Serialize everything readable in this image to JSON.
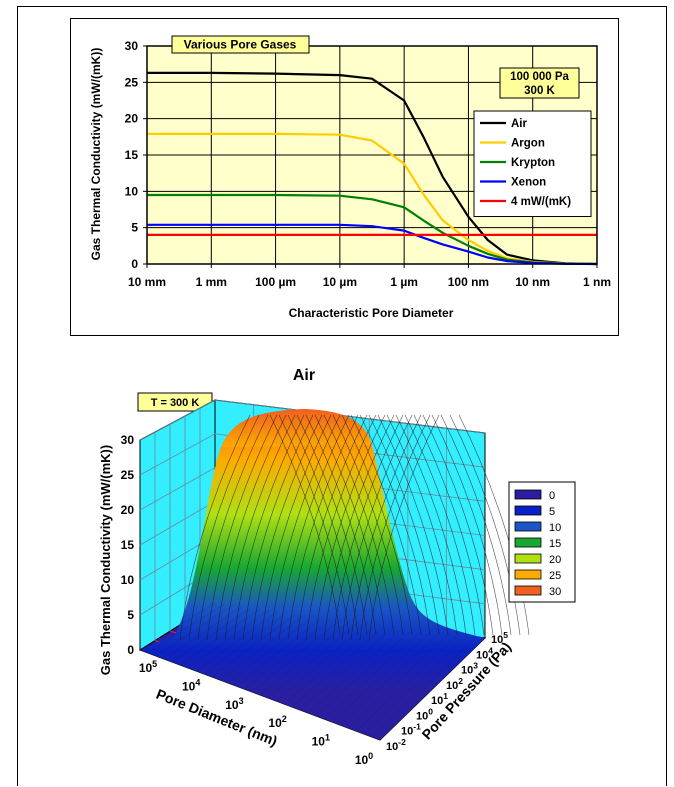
{
  "chart_data": [
    {
      "type": "line",
      "title": "Various Pore Gases",
      "xlabel": "Characteristic Pore Diameter",
      "ylabel": "Gas Thermal Conductivity (mW/(mK))",
      "annotation": [
        "100 000 Pa",
        "300 K"
      ],
      "categories": [
        "10 mm",
        "1 mm",
        "100 µm",
        "10 µm",
        "1 µm",
        "100 nm",
        "10 nm",
        "1 nm"
      ],
      "ylim": [
        0,
        30
      ],
      "yticks": [
        "0",
        "5",
        "10",
        "15",
        "20",
        "25",
        "30"
      ],
      "grid": true,
      "legend_position": "right",
      "x_scale": "log (pore diameter, decreasing left to right)",
      "x": [
        0,
        1,
        2,
        3,
        3.5,
        4,
        4.3,
        4.6,
        5,
        5.3,
        5.6,
        6,
        6.5,
        7
      ],
      "series": [
        {
          "name": "Air",
          "color": "#000000",
          "values": [
            26.3,
            26.3,
            26.2,
            26.0,
            25.5,
            22.5,
            17.5,
            12.0,
            6.5,
            3.3,
            1.3,
            0.5,
            0.1,
            0.0
          ]
        },
        {
          "name": "Argon",
          "color": "#ffcc00",
          "values": [
            17.9,
            17.9,
            17.9,
            17.8,
            17.0,
            13.8,
            9.6,
            6.0,
            3.3,
            1.8,
            0.8,
            0.3,
            0.05,
            0.0
          ]
        },
        {
          "name": "Krypton",
          "color": "#008000",
          "values": [
            9.5,
            9.5,
            9.5,
            9.4,
            8.9,
            7.8,
            6.0,
            4.3,
            2.5,
            1.4,
            0.6,
            0.2,
            0.05,
            0.0
          ]
        },
        {
          "name": "Xenon",
          "color": "#0000ff",
          "values": [
            5.4,
            5.4,
            5.4,
            5.4,
            5.2,
            4.6,
            3.6,
            2.7,
            1.7,
            0.9,
            0.4,
            0.15,
            0.03,
            0.0
          ]
        },
        {
          "name": "4 mW/(mK)",
          "color": "#ff0000",
          "values": [
            4,
            4,
            4,
            4,
            4,
            4,
            4,
            4,
            4,
            4,
            4,
            4,
            4,
            4
          ]
        }
      ]
    },
    {
      "type": "surface3d",
      "title": "Air",
      "annotation": "T = 300 K",
      "zlabel": "Gas Thermal Conductivity (mW/(mK))",
      "xlabel": "Pore Diameter (nm)",
      "ylabel": "Pore Pressure (Pa)",
      "zlim": [
        0,
        30
      ],
      "zticks": [
        "0",
        "5",
        "10",
        "15",
        "20",
        "25",
        "30"
      ],
      "xticks": [
        "10^5",
        "10^4",
        "10^3",
        "10^2",
        "10^1",
        "10^0"
      ],
      "yticks": [
        "10^-2",
        "10^-1",
        "10^0",
        "10^1",
        "10^2",
        "10^3",
        "10^4",
        "10^5"
      ],
      "legend": [
        {
          "label": "0",
          "color": "#2a1fa0"
        },
        {
          "label": "5",
          "color": "#0a22c4"
        },
        {
          "label": "10",
          "color": "#1a56c6"
        },
        {
          "label": "15",
          "color": "#18a832"
        },
        {
          "label": "20",
          "color": "#aee014"
        },
        {
          "label": "25",
          "color": "#ffaa00"
        },
        {
          "label": "30",
          "color": "#f06020"
        }
      ],
      "max_value": 26.3
    }
  ]
}
